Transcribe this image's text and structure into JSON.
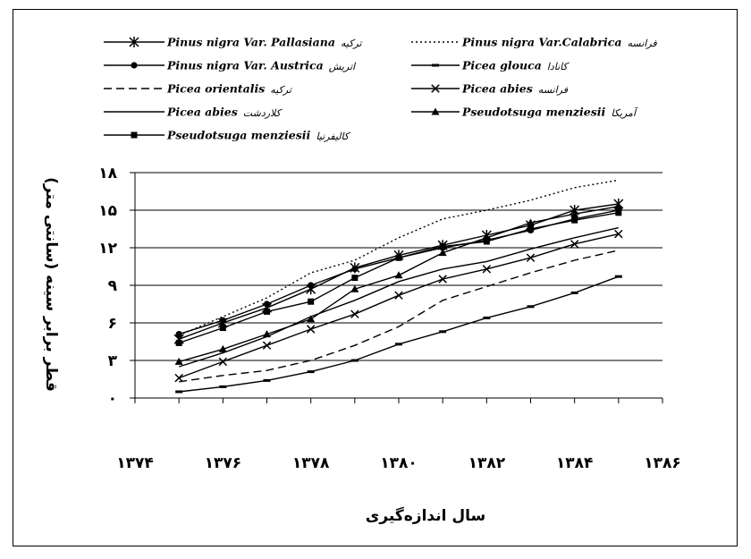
{
  "chart_data": {
    "type": "line",
    "xlabel": "سال اندازه‌گیری",
    "ylabel": "قطر برابر سینه (سانتی متر)",
    "xlim": [
      1374,
      1386
    ],
    "ylim": [
      0,
      18
    ],
    "x_ticks": [
      "۱۳۷۴",
      "۱۳۷۶",
      "۱۳۷۸",
      "۱۳۸۰",
      "۱۳۸۲",
      "۱۳۸۴",
      "۱۳۸۶"
    ],
    "y_ticks": [
      "۰",
      "۳",
      "۶",
      "۹",
      "۱۲",
      "۱۵",
      "۱۸"
    ],
    "grid": "horizontal",
    "legend_position": "top",
    "x": [
      1375,
      1376,
      1377,
      1378,
      1379,
      1380,
      1381,
      1382,
      1383,
      1384,
      1385
    ],
    "series": [
      {
        "name": "Pinus nigra Var. Pallasiana",
        "location": "ترکیه",
        "style": "solid",
        "marker": "asterisk",
        "values": [
          4.7,
          6.0,
          7.2,
          8.7,
          10.4,
          11.4,
          12.2,
          13.0,
          13.8,
          15.0,
          15.5
        ]
      },
      {
        "name": "Pinus nigra Var.Calabrica",
        "location": "فرانسه",
        "style": "dotted",
        "marker": "none",
        "values": [
          5.0,
          6.5,
          8.0,
          10.0,
          11.0,
          12.8,
          14.3,
          15.0,
          15.8,
          16.8,
          17.4
        ]
      },
      {
        "name": "Pinus nigra Var. Austrica",
        "location": "اتریش",
        "style": "solid",
        "marker": "circle",
        "values": [
          5.1,
          6.2,
          7.5,
          9.0,
          10.3,
          11.2,
          12.0,
          12.6,
          13.4,
          14.3,
          15.0
        ]
      },
      {
        "name": "Picea glouca",
        "location": "کانادا",
        "style": "solid",
        "marker": "dash",
        "values": [
          0.5,
          0.9,
          1.4,
          2.1,
          3.0,
          4.3,
          5.3,
          6.4,
          7.3,
          8.4,
          9.7
        ]
      },
      {
        "name": "Picea orientalis",
        "location": "ترکیه",
        "style": "dashed",
        "marker": "none",
        "values": [
          1.3,
          1.8,
          2.2,
          3.0,
          4.2,
          5.7,
          7.8,
          8.9,
          10.0,
          11.0,
          11.8
        ]
      },
      {
        "name": "Picea abies",
        "location": "فرانسه",
        "style": "solid",
        "marker": "x",
        "values": [
          1.6,
          2.9,
          4.2,
          5.5,
          6.7,
          8.2,
          9.5,
          10.3,
          11.2,
          12.3,
          13.1
        ]
      },
      {
        "name": "Picea abies",
        "location": "کلاردشت",
        "style": "solid",
        "marker": "none",
        "values": [
          2.5,
          3.6,
          4.9,
          6.5,
          7.8,
          9.3,
          10.3,
          10.9,
          11.9,
          12.8,
          13.6
        ]
      },
      {
        "name": "Pseudotsuga menziesii",
        "location": "آمریکا",
        "style": "solid",
        "marker": "triangle",
        "values": [
          2.9,
          3.9,
          5.1,
          6.3,
          8.7,
          9.8,
          11.6,
          12.8,
          14.0,
          14.7,
          15.3
        ]
      },
      {
        "name": "Pseudotsuga menziesii",
        "location": "کالیفرنیا",
        "style": "solid",
        "marker": "square",
        "values": [
          4.4,
          5.6,
          6.9,
          7.7,
          9.6,
          11.2,
          12.1,
          12.5,
          13.5,
          14.2,
          14.8
        ]
      }
    ]
  }
}
